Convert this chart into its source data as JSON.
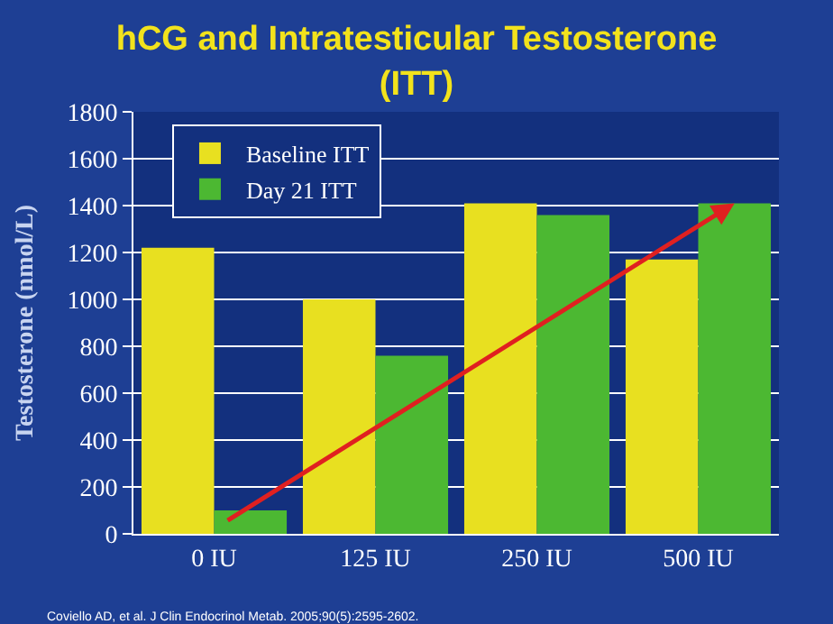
{
  "chart_data": {
    "type": "bar",
    "title": "hCG and Intratesticular Testosterone\n(ITT)",
    "ylabel": "Testosterone (nmol/L)",
    "categories": [
      "0 IU",
      "125 IU",
      "250 IU",
      "500 IU"
    ],
    "series": [
      {
        "name": "Baseline ITT",
        "color": "#e8e020",
        "values": [
          1220,
          1000,
          1410,
          1170
        ]
      },
      {
        "name": "Day 21 ITT",
        "color": "#4cb832",
        "values": [
          100,
          760,
          1360,
          1410
        ]
      }
    ],
    "ylim": [
      0,
      1800
    ],
    "yticks": [
      0,
      200,
      400,
      600,
      800,
      1000,
      1200,
      1400,
      1600,
      1800
    ],
    "grid": "y",
    "legend": "top left",
    "annotations": [
      "Coviello AD, et al. J Clin Endocrinol Metab. 2005;90(5):2595-2602."
    ]
  }
}
